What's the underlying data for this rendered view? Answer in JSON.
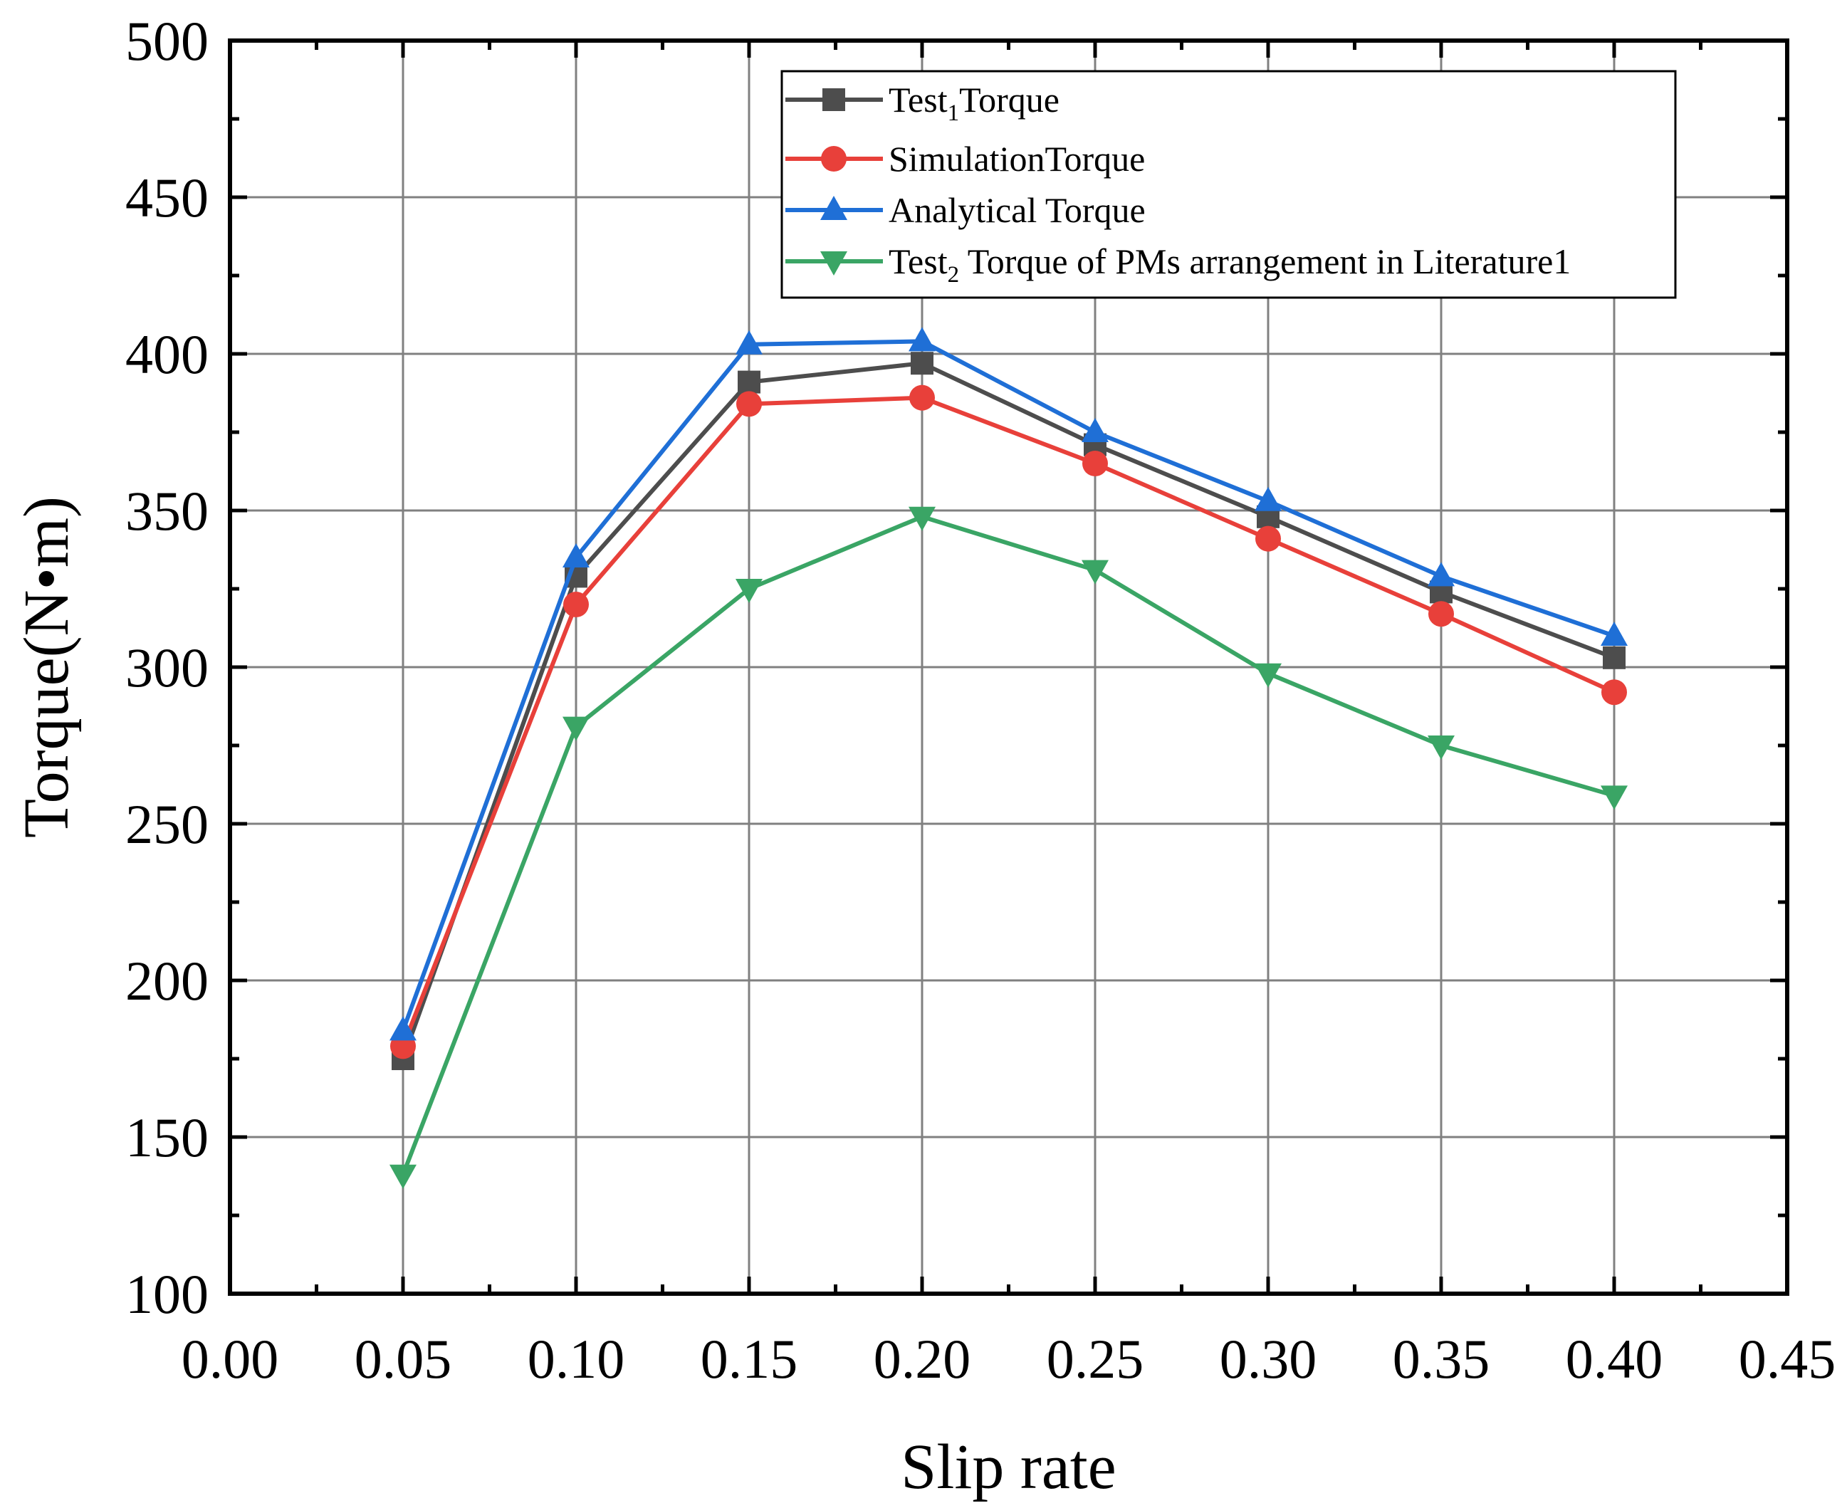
{
  "chart_data": {
    "type": "line",
    "title": "",
    "xlabel": "Slip rate",
    "ylabel": "Torque(N•m)",
    "xlim": [
      0.0,
      0.45
    ],
    "ylim": [
      100,
      500
    ],
    "grid": true,
    "legend_position": "top-right",
    "x_ticks": [
      "0.00",
      "0.05",
      "0.10",
      "0.15",
      "0.20",
      "0.25",
      "0.30",
      "0.35",
      "0.40",
      "0.45"
    ],
    "y_ticks": [
      "100",
      "150",
      "200",
      "250",
      "300",
      "350",
      "400",
      "450",
      "500"
    ],
    "x": [
      0.05,
      0.1,
      0.15,
      0.2,
      0.25,
      0.3,
      0.35,
      0.4
    ],
    "series": [
      {
        "name": "Test1Torque",
        "legend_label": {
          "pre": "Test",
          "sub": "1",
          "post": "Torque"
        },
        "color": "#4d4d4d",
        "marker": "square",
        "values": [
          175,
          329,
          391,
          397,
          371,
          348,
          324,
          303
        ]
      },
      {
        "name": "SimulationTorque",
        "legend_label": {
          "pre": "SimulationTorque",
          "sub": "",
          "post": ""
        },
        "color": "#e8403a",
        "marker": "circle",
        "values": [
          179,
          320,
          384,
          386,
          365,
          341,
          317,
          292
        ]
      },
      {
        "name": "Analytical Torque",
        "legend_label": {
          "pre": "Analytical Torque",
          "sub": "",
          "post": ""
        },
        "color": "#1f6fd6",
        "marker": "triangle-up",
        "values": [
          184,
          335,
          403,
          404,
          375,
          353,
          329,
          310
        ]
      },
      {
        "name": "Test2 Torque of PMs arrangement in Literature1",
        "legend_label": {
          "pre": "Test",
          "sub": "2",
          "post": " Torque of PMs arrangement in Literature1"
        },
        "color": "#3aa565",
        "marker": "triangle-down",
        "values": [
          138,
          281,
          325,
          348,
          331,
          298,
          275,
          259
        ]
      }
    ]
  }
}
